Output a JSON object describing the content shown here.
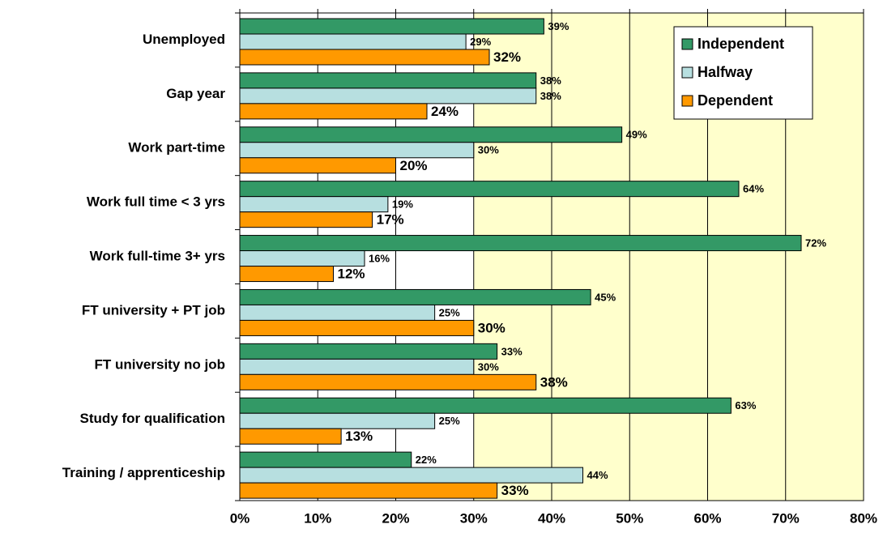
{
  "chart_data": {
    "type": "bar",
    "orientation": "horizontal",
    "categories": [
      "Unemployed",
      "Gap year",
      "Work part-time",
      "Work full time <  3 yrs",
      "Work full-time 3+  yrs",
      "FT university +  PT job",
      "FT university no job",
      "Study for qualification",
      "Training / apprenticeship"
    ],
    "series": [
      {
        "name": "Independent",
        "color": "#339966",
        "values": [
          39,
          38,
          49,
          64,
          72,
          45,
          33,
          63,
          22
        ],
        "value_labels": [
          "39%",
          "38%",
          "49%",
          "64%",
          "72%",
          "45%",
          "33%",
          "63%",
          "22%"
        ]
      },
      {
        "name": "Halfway",
        "color": "#b7dfe0",
        "values": [
          29,
          38,
          30,
          19,
          16,
          25,
          30,
          25,
          44
        ],
        "value_labels": [
          "29%",
          "38%",
          "30%",
          "19%",
          "16%",
          "25%",
          "30%",
          "25%",
          "44%"
        ]
      },
      {
        "name": "Dependent",
        "color": "#ff9900",
        "values": [
          32,
          24,
          20,
          17,
          12,
          30,
          38,
          13,
          33
        ],
        "value_labels": [
          "32%",
          "24%",
          "20%",
          "17%",
          "12%",
          "30%",
          "38%",
          "13%",
          "33%"
        ]
      }
    ],
    "xlim": [
      0,
      80
    ],
    "xticks": [
      {
        "value": 0,
        "label": "0%"
      },
      {
        "value": 10,
        "label": "10%"
      },
      {
        "value": 20,
        "label": "20%"
      },
      {
        "value": 30,
        "label": "30%"
      },
      {
        "value": 40,
        "label": "40%"
      },
      {
        "value": 50,
        "label": "50%"
      },
      {
        "value": 60,
        "label": "60%"
      },
      {
        "value": 70,
        "label": "70%"
      },
      {
        "value": 80,
        "label": "80%"
      }
    ],
    "grid": true,
    "legend": "upper right",
    "shade_from": 30,
    "shade_color": "#ffffcc"
  }
}
